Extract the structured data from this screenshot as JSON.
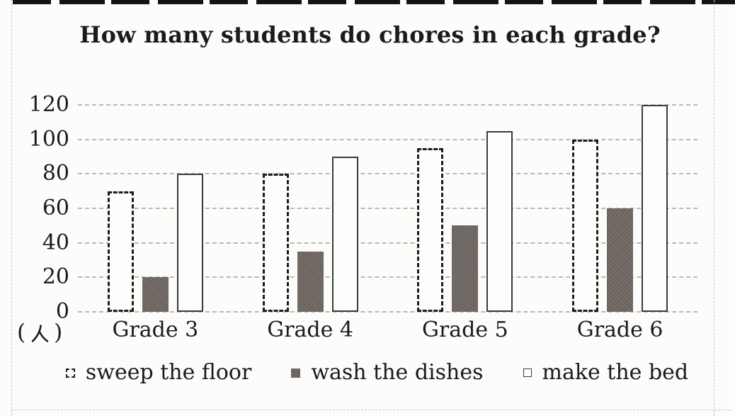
{
  "chart_data": {
    "type": "bar",
    "title": "How many students do chores in each grade?",
    "categories": [
      "Grade 3",
      "Grade 4",
      "Grade 5",
      "Grade 6"
    ],
    "series": [
      {
        "name": "sweep the floor",
        "style": "dotted-outline",
        "values": [
          70,
          80,
          95,
          100
        ]
      },
      {
        "name": "wash the dishes",
        "style": "solid-gray",
        "values": [
          20,
          35,
          50,
          60
        ]
      },
      {
        "name": "make the bed",
        "style": "white-outline",
        "values": [
          80,
          90,
          105,
          120
        ]
      }
    ],
    "y_ticks": [
      0,
      20,
      40,
      60,
      80,
      100,
      120
    ],
    "ylim": [
      0,
      120
    ],
    "y_axis_unit": "(人)",
    "xlabel": "",
    "ylabel": "",
    "grid": "horizontal-dashed",
    "legend_position": "bottom"
  },
  "axis_unit": {
    "open": "(",
    "glyph_name": "ren-person-character",
    "close": ")"
  },
  "colors": {
    "ink": "#1b1b1b",
    "gridline": "#bcb8b4",
    "gray_bar_fill": "#6e6661",
    "bar_outline": "#3b3a38",
    "paper": "#fcfcfa",
    "cut_line": "#c6c4c1"
  }
}
